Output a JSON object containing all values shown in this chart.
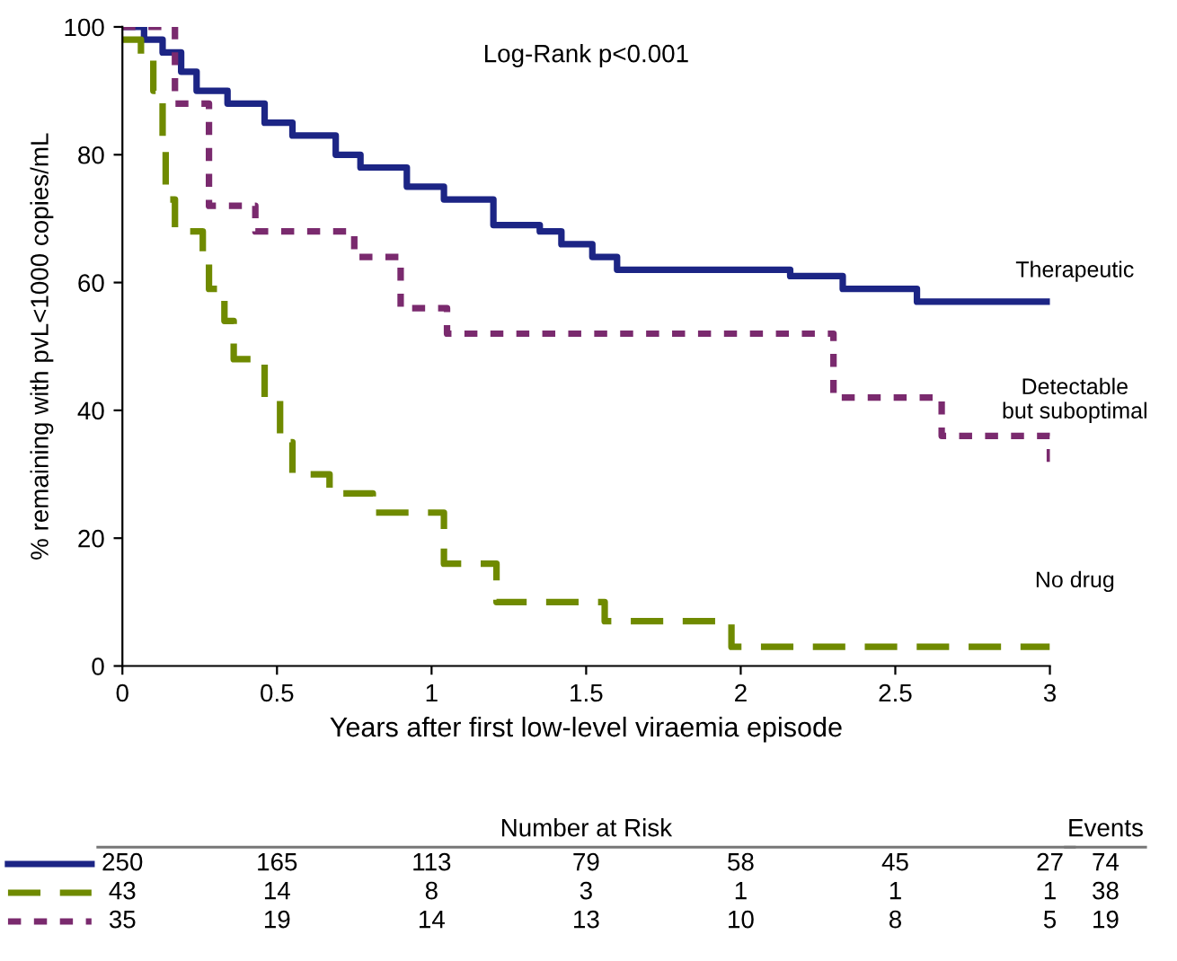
{
  "chart_data": {
    "type": "step",
    "xlabel": "Years after first low-level viraemia episode",
    "ylabel": "% remaining with pvL<1000 copies/mL",
    "xlim": [
      0,
      3
    ],
    "ylim": [
      0,
      100
    ],
    "xticks": [
      0,
      0.5,
      1,
      1.5,
      2,
      2.5,
      3
    ],
    "yticks": [
      0,
      20,
      40,
      60,
      80,
      100
    ],
    "grid": false,
    "legend": false,
    "series": [
      {
        "name": "Therapeutic",
        "color": "#1c2585",
        "line_style": "solid",
        "x": [
          0,
          0.07,
          0.13,
          0.19,
          0.24,
          0.34,
          0.46,
          0.55,
          0.69,
          0.77,
          0.92,
          1.04,
          1.2,
          1.35,
          1.42,
          1.52,
          1.6,
          2.16,
          2.33,
          2.57,
          3.0
        ],
        "values": [
          100,
          98,
          96,
          93,
          90,
          88,
          85,
          83,
          80,
          78,
          75,
          73,
          69,
          68,
          66,
          64,
          62,
          61,
          59,
          57,
          57
        ]
      },
      {
        "name": "No drug",
        "color": "#6f8a00",
        "line_style": "dashed",
        "x": [
          0,
          0.06,
          0.1,
          0.13,
          0.14,
          0.17,
          0.26,
          0.28,
          0.33,
          0.36,
          0.46,
          0.51,
          0.55,
          0.67,
          0.81,
          1.04,
          1.21,
          1.56,
          1.97,
          3.0
        ],
        "values": [
          98,
          95,
          90,
          81,
          73,
          68,
          63,
          59,
          54,
          48,
          42,
          35,
          30,
          27,
          24,
          16,
          10,
          7,
          3,
          3
        ]
      },
      {
        "name": "Detectable\nbut suboptimal",
        "color": "#7a2a6e",
        "line_style": "dotted",
        "x": [
          0,
          0.17,
          0.28,
          0.43,
          0.75,
          0.9,
          1.05,
          2.3,
          2.65,
          3.0
        ],
        "values": [
          100,
          88,
          72,
          68,
          64,
          56,
          52,
          42,
          36,
          31
        ]
      }
    ],
    "annotations": [
      "Log-Rank p<0.001",
      "Number at Risk",
      "Events",
      "250",
      "165",
      "113",
      "79",
      "58",
      "45",
      "27",
      "74",
      "43",
      "14",
      "8",
      "3",
      "1",
      "1",
      "1",
      "38",
      "35",
      "19",
      "14",
      "13",
      "10",
      "8",
      "5",
      "19"
    ]
  }
}
